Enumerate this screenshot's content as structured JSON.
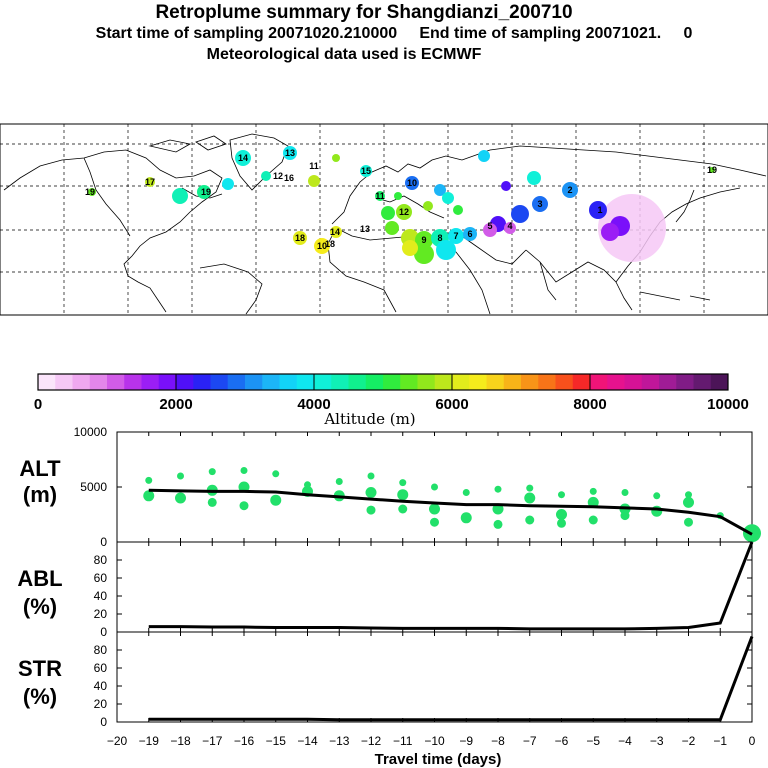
{
  "header": {
    "title": "Retroplume summary for Shangdianzi_200710",
    "line2": "Start time of sampling 20071020.210000     End time of sampling 20071021.     0",
    "line3": "Meteorological data used is ECMWF"
  },
  "colorbar": {
    "title": "Altitude (m)",
    "ticks": [
      "0",
      "2000",
      "4000",
      "6000",
      "8000",
      "10000"
    ],
    "colors": [
      "#fbe5fb",
      "#f6c8f6",
      "#efa8f0",
      "#e386ea",
      "#d25ce8",
      "#b833ea",
      "#9b1ef5",
      "#7a10fa",
      "#5010f8",
      "#2a22f5",
      "#1c48f2",
      "#1a6ef2",
      "#1c93f4",
      "#1cb5f7",
      "#12d3f7",
      "#0fe7ef",
      "#10f0d8",
      "#10f0b6",
      "#10f08e",
      "#15ee64",
      "#30ec3e",
      "#62ea22",
      "#92e81c",
      "#bde81c",
      "#e2ec1c",
      "#f6ec1c",
      "#f8d31c",
      "#f8b418",
      "#f89418",
      "#f87418",
      "#f8501c",
      "#f62828",
      "#f01478",
      "#e6128e",
      "#d61296",
      "#c0169a",
      "#a01c96",
      "#801c86",
      "#641a70",
      "#4c1458"
    ]
  },
  "map_labels": [
    "14",
    "13",
    "12",
    "11",
    "16",
    "15",
    "19",
    "17",
    "18",
    "10",
    "19",
    "18",
    "14",
    "13",
    "12",
    "11",
    "10",
    "9",
    "8",
    "7",
    "6",
    "5",
    "4",
    "3",
    "2",
    "1",
    "19"
  ],
  "chart_data": [
    {
      "type": "line",
      "panel": "ALT",
      "ylabel_top": "ALT",
      "ylabel_bottom": "(m)",
      "ylim": [
        0,
        10000
      ],
      "yticks": [
        "10000",
        "5000",
        "0"
      ],
      "ytick_values": [
        10000,
        5000,
        0
      ],
      "x": [
        -19,
        -18,
        -17,
        -16,
        -15,
        -14,
        -13,
        -12,
        -11,
        -10,
        -9,
        -8,
        -7,
        -6,
        -5,
        -4,
        -3,
        -2,
        -1,
        0
      ],
      "values": [
        4700,
        4650,
        4600,
        4600,
        4550,
        4300,
        4100,
        3900,
        3700,
        3550,
        3400,
        3400,
        3300,
        3250,
        3200,
        3100,
        3000,
        2700,
        2300,
        700
      ],
      "scatter": [
        {
          "x": -19,
          "y": [
            5600,
            4200
          ]
        },
        {
          "x": -18,
          "y": [
            6000,
            4000
          ]
        },
        {
          "x": -17,
          "y": [
            6400,
            4700,
            3600
          ]
        },
        {
          "x": -16,
          "y": [
            6500,
            5000,
            3300
          ]
        },
        {
          "x": -15,
          "y": [
            6200,
            3800
          ]
        },
        {
          "x": -14,
          "y": [
            5200,
            4600
          ]
        },
        {
          "x": -13,
          "y": [
            5500,
            4200
          ]
        },
        {
          "x": -12,
          "y": [
            6000,
            4500,
            2900
          ]
        },
        {
          "x": -11,
          "y": [
            5400,
            4300,
            3000
          ]
        },
        {
          "x": -10,
          "y": [
            5000,
            3000,
            1800
          ]
        },
        {
          "x": -9,
          "y": [
            4500,
            2200
          ]
        },
        {
          "x": -8,
          "y": [
            4800,
            3000,
            1600
          ]
        },
        {
          "x": -7,
          "y": [
            4900,
            4000,
            2000
          ]
        },
        {
          "x": -6,
          "y": [
            4300,
            2500,
            1700
          ]
        },
        {
          "x": -5,
          "y": [
            4600,
            3600,
            2000
          ]
        },
        {
          "x": -4,
          "y": [
            4500,
            3000,
            2400
          ]
        },
        {
          "x": -3,
          "y": [
            4200,
            2800
          ]
        },
        {
          "x": -2,
          "y": [
            4300,
            3600,
            1800
          ]
        },
        {
          "x": -1,
          "y": [
            2400
          ]
        },
        {
          "x": 0,
          "y": [
            800
          ]
        }
      ]
    },
    {
      "type": "line",
      "panel": "ABL",
      "ylabel_top": "ABL",
      "ylabel_bottom": "(%)",
      "ylim": [
        0,
        100
      ],
      "yticks": [
        "80",
        "60",
        "40",
        "20",
        "0"
      ],
      "ytick_values": [
        80,
        60,
        40,
        20,
        0
      ],
      "x": [
        -19,
        -18,
        -17,
        -16,
        -15,
        -14,
        -13,
        -12,
        -11,
        -10,
        -9,
        -8,
        -7,
        -6,
        -5,
        -4,
        -3,
        -2,
        -1,
        0
      ],
      "values": [
        6,
        6,
        5.5,
        5.5,
        5,
        5,
        5,
        4.5,
        4,
        4,
        4,
        4,
        3.5,
        3.5,
        3.5,
        3.5,
        4,
        5,
        10,
        100
      ]
    },
    {
      "type": "line",
      "panel": "STR",
      "ylabel_top": "STR",
      "ylabel_bottom": "(%)",
      "ylim": [
        0,
        100
      ],
      "yticks": [
        "80",
        "60",
        "40",
        "20",
        "0"
      ],
      "ytick_values": [
        80,
        60,
        40,
        20,
        0
      ],
      "x": [
        -19,
        -18,
        -17,
        -16,
        -15,
        -14,
        -13,
        -12,
        -11,
        -10,
        -9,
        -8,
        -7,
        -6,
        -5,
        -4,
        -3,
        -2,
        -1,
        0
      ],
      "values": [
        3,
        3,
        3,
        3,
        3,
        3,
        2.5,
        2.5,
        2.5,
        2.5,
        2.5,
        2.5,
        2.5,
        2.5,
        2.5,
        2.5,
        2.5,
        2.5,
        2.5,
        95
      ],
      "xlabel": "Travel time (days)",
      "xlim": [
        -20,
        0
      ],
      "xticks": [
        "−20",
        "−19",
        "−18",
        "−17",
        "−16",
        "−15",
        "−14",
        "−13",
        "−12",
        "−11",
        "−10",
        "−9",
        "−8",
        "−7",
        "−6",
        "−5",
        "−4",
        "−3",
        "−2",
        "−1",
        "0"
      ]
    }
  ]
}
